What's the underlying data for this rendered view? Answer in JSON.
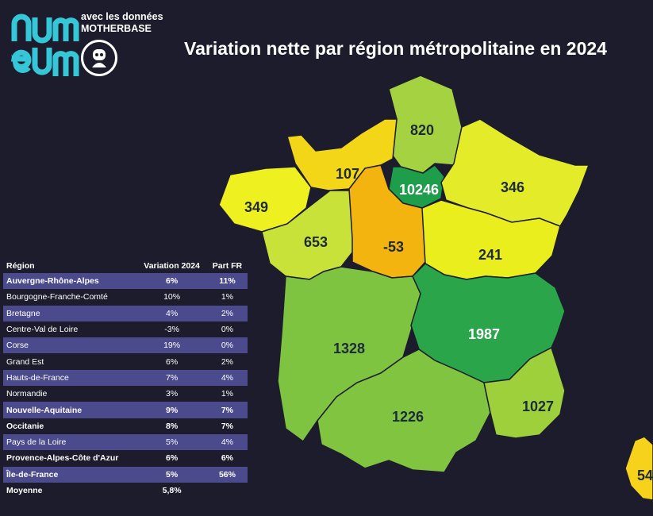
{
  "logo": {
    "line1": "avec les données",
    "line2": "MOTHERBASE"
  },
  "title": "Variation nette par région métropolitaine en 2024",
  "chart_data": [
    {
      "type": "map",
      "regions": [
        {
          "name": "Hauts-de-France",
          "value": 820,
          "color": "#a5d240"
        },
        {
          "name": "Normandie",
          "value": 107,
          "color": "#f2d617"
        },
        {
          "name": "Île-de-France",
          "value": 10246,
          "color": "#1e9e4a"
        },
        {
          "name": "Grand Est",
          "value": 346,
          "color": "#e4ec2a"
        },
        {
          "name": "Bretagne",
          "value": 349,
          "color": "#eef020"
        },
        {
          "name": "Pays de la Loire",
          "value": 653,
          "color": "#c9e23a"
        },
        {
          "name": "Centre-Val de Loire",
          "value": -53,
          "color": "#f3b40f"
        },
        {
          "name": "Bourgogne-Franche-Comté",
          "value": 241,
          "color": "#eaee1c"
        },
        {
          "name": "Nouvelle-Aquitaine",
          "value": 1328,
          "color": "#7fc441"
        },
        {
          "name": "Auvergne-Rhône-Alpes",
          "value": 1987,
          "color": "#2aa54a"
        },
        {
          "name": "Occitanie",
          "value": 1226,
          "color": "#80c440"
        },
        {
          "name": "Provence-Alpes-Côte d'Azur",
          "value": 1027,
          "color": "#9dd03b"
        },
        {
          "name": "Corse",
          "value": "54",
          "color": "#f7d21a"
        }
      ]
    },
    {
      "type": "table",
      "columns": [
        "Région",
        "Variation 2024",
        "Part FR"
      ],
      "rows": [
        {
          "region": "Auvergne-Rhône-Alpes",
          "variation": "6%",
          "part": "11%",
          "bold": true
        },
        {
          "region": "Bourgogne-Franche-Comté",
          "variation": "10%",
          "part": "1%",
          "bold": false
        },
        {
          "region": "Bretagne",
          "variation": "4%",
          "part": "2%",
          "bold": false
        },
        {
          "region": "Centre-Val de Loire",
          "variation": "-3%",
          "part": "0%",
          "bold": false
        },
        {
          "region": "Corse",
          "variation": "19%",
          "part": "0%",
          "bold": false
        },
        {
          "region": "Grand Est",
          "variation": "6%",
          "part": "2%",
          "bold": false
        },
        {
          "region": "Hauts-de-France",
          "variation": "7%",
          "part": "4%",
          "bold": false
        },
        {
          "region": "Normandie",
          "variation": "3%",
          "part": "1%",
          "bold": false
        },
        {
          "region": "Nouvelle-Aquitaine",
          "variation": "9%",
          "part": "7%",
          "bold": true
        },
        {
          "region": "Occitanie",
          "variation": "8%",
          "part": "7%",
          "bold": true
        },
        {
          "region": "Pays de la Loire",
          "variation": "5%",
          "part": "4%",
          "bold": false
        },
        {
          "region": "Provence-Alpes-Côte d'Azur",
          "variation": "6%",
          "part": "6%",
          "bold": true
        },
        {
          "region": "Île-de-France",
          "variation": "5%",
          "part": "56%",
          "bold": true
        }
      ],
      "footer": {
        "label": "Moyenne",
        "variation": "5,8%"
      }
    }
  ],
  "colors": {
    "background": "#1c1c2c",
    "logo": "#35c6d8",
    "stripe": "#4b4a8c",
    "label_dark": "#1d2a3a"
  },
  "icons": [
    "numeum-logo",
    "robot-badge-icon"
  ]
}
